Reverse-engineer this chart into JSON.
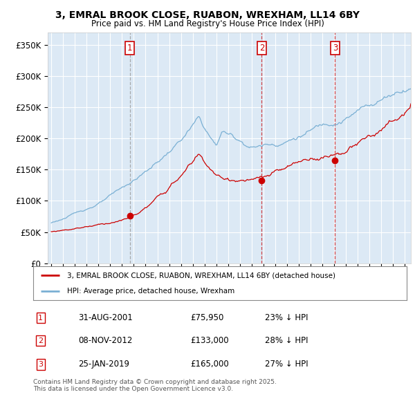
{
  "title_line1": "3, EMRAL BROOK CLOSE, RUABON, WREXHAM, LL14 6BY",
  "title_line2": "Price paid vs. HM Land Registry's House Price Index (HPI)",
  "plot_bg_color": "#dce9f5",
  "ylabel_ticks": [
    "£0",
    "£50K",
    "£100K",
    "£150K",
    "£200K",
    "£250K",
    "£300K",
    "£350K"
  ],
  "ytick_values": [
    0,
    50000,
    100000,
    150000,
    200000,
    250000,
    300000,
    350000
  ],
  "ylim": [
    0,
    370000
  ],
  "xlim_start": 1994.7,
  "xlim_end": 2025.5,
  "sale_dates": [
    2001.664,
    2012.854,
    2019.069
  ],
  "sale_prices": [
    75950,
    133000,
    165000
  ],
  "sale_labels": [
    "1",
    "2",
    "3"
  ],
  "sale_label_dates": [
    "31-AUG-2001",
    "08-NOV-2012",
    "25-JAN-2019"
  ],
  "sale_label_prices": [
    "£75,950",
    "£133,000",
    "£165,000"
  ],
  "sale_label_pcts": [
    "23% ↓ HPI",
    "28% ↓ HPI",
    "27% ↓ HPI"
  ],
  "red_line_color": "#cc0000",
  "blue_line_color": "#7ab0d4",
  "vline1_color": "#999999",
  "vline23_color": "#cc0000",
  "legend_label_red": "3, EMRAL BROOK CLOSE, RUABON, WREXHAM, LL14 6BY (detached house)",
  "legend_label_blue": "HPI: Average price, detached house, Wrexham",
  "footnote": "Contains HM Land Registry data © Crown copyright and database right 2025.\nThis data is licensed under the Open Government Licence v3.0.",
  "grid_color": "#ffffff",
  "number_box_color": "#cc0000"
}
